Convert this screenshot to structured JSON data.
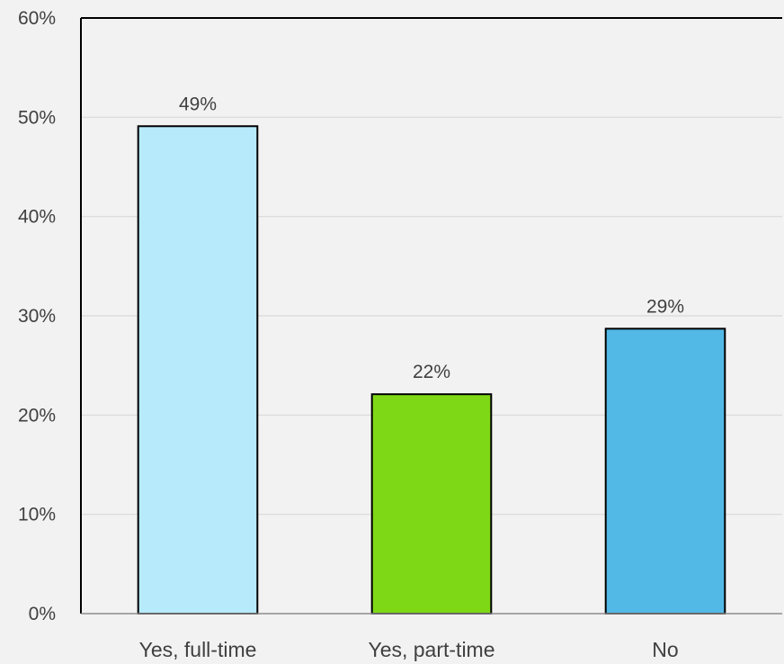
{
  "chart_data": {
    "type": "bar",
    "title": "",
    "xlabel": "",
    "ylabel": "",
    "categories": [
      "Yes, full-time",
      "Yes, part-time",
      "No"
    ],
    "values": [
      49.1,
      22.1,
      28.7
    ],
    "data_labels": [
      "49%",
      "22%",
      "29%"
    ],
    "bar_colors": [
      "#b7ebfc",
      "#7fd815",
      "#52b8e6"
    ],
    "ylim": [
      0,
      60
    ],
    "y_ticks": [
      0,
      10,
      20,
      30,
      40,
      50,
      60
    ],
    "y_tick_labels": [
      "0%",
      "10%",
      "20%",
      "30%",
      "40%",
      "50%",
      "60%"
    ],
    "grid": true,
    "legend": "none"
  },
  "colors": {
    "background": "#f2f2f2",
    "gridline": "#d9d9d9",
    "frame": "#000000",
    "bar_outline": "#000000",
    "text": "#404040"
  }
}
